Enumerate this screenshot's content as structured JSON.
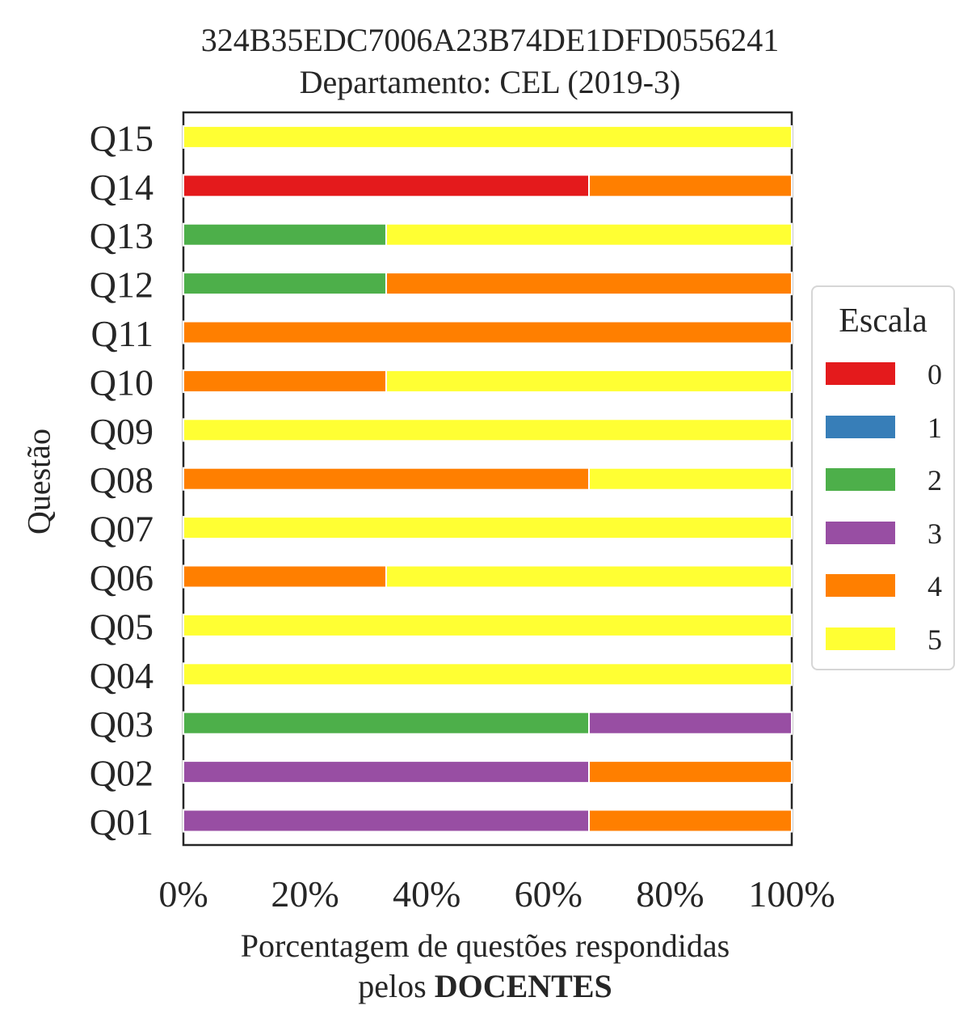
{
  "chart_data": {
    "type": "bar",
    "orientation": "horizontal",
    "stacked": true,
    "title": [
      "324B35EDC7006A23B74DE1DFD0556241",
      "Departamento: CEL (2019-3)"
    ],
    "xlabel": {
      "line1": "Porcentagem de questões respondidas",
      "line2_prefix": "pelos ",
      "line2_bold": "DOCENTES"
    },
    "ylabel": "Questão",
    "categories": [
      "Q01",
      "Q02",
      "Q03",
      "Q04",
      "Q05",
      "Q06",
      "Q07",
      "Q08",
      "Q09",
      "Q10",
      "Q11",
      "Q12",
      "Q13",
      "Q14",
      "Q15"
    ],
    "xlim": [
      0,
      100
    ],
    "xticks": [
      "0%",
      "20%",
      "40%",
      "60%",
      "80%",
      "100%"
    ],
    "legend_title": "Escala",
    "legend_position": "right",
    "series": [
      {
        "name": "0",
        "color": "#e41a1c",
        "values": [
          0,
          0,
          0,
          0,
          0,
          0,
          0,
          0,
          0,
          0,
          0,
          0,
          0,
          66.67,
          0
        ]
      },
      {
        "name": "1",
        "color": "#377eb8",
        "values": [
          0,
          0,
          0,
          0,
          0,
          0,
          0,
          0,
          0,
          0,
          0,
          0,
          0,
          0,
          0
        ]
      },
      {
        "name": "2",
        "color": "#4daf4a",
        "values": [
          0,
          0,
          66.67,
          0,
          0,
          0,
          0,
          0,
          0,
          0,
          0,
          33.33,
          33.33,
          0,
          0
        ]
      },
      {
        "name": "3",
        "color": "#984ea3",
        "values": [
          66.67,
          66.67,
          33.33,
          0,
          0,
          0,
          0,
          0,
          0,
          0,
          0,
          0,
          0,
          0,
          0
        ]
      },
      {
        "name": "4",
        "color": "#ff7f00",
        "values": [
          33.33,
          33.33,
          0,
          0,
          0,
          33.33,
          0,
          66.67,
          0,
          33.33,
          100,
          66.67,
          0,
          33.33,
          0
        ]
      },
      {
        "name": "5",
        "color": "#ffff33",
        "values": [
          0,
          0,
          0,
          100,
          100,
          66.67,
          100,
          33.33,
          100,
          66.67,
          0,
          0,
          66.67,
          0,
          100
        ]
      }
    ]
  }
}
